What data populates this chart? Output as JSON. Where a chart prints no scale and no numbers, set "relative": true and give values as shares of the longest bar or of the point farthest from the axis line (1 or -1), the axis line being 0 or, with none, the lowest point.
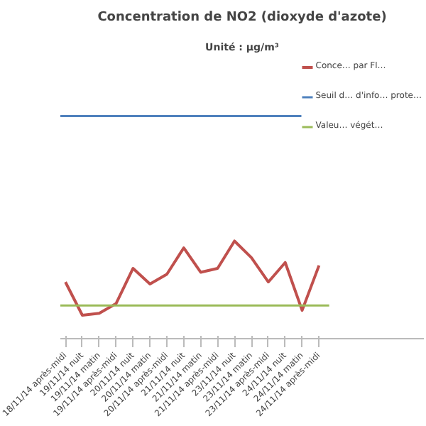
{
  "chart_data": {
    "type": "line",
    "title": "Concentration de NO2 (dioxyde d'azote)",
    "subtitle": "Unité : µg/m³",
    "categories": [
      "18/11/14 après-midi",
      "19/11/14 nuit",
      "19/11/14 matin",
      "19/11/14 après-midi",
      "20/11/14 nuit",
      "20/11/14 matin",
      "20/11/14 après-midi",
      "21/11/14 nuit",
      "21/11/14 matin",
      "21/11/14 après-midi",
      "23/11/14 nuit",
      "23/11/14 matin",
      "23/11/14 après-midi",
      "24/11/14 nuit",
      "24/11/14 matin",
      "24/11/14 après-midi"
    ],
    "series": [
      {
        "name": "Conce… par Fl…",
        "color": "#c0504d",
        "values": [
          0.58,
          0.24,
          0.26,
          0.36,
          0.72,
          0.56,
          0.66,
          0.93,
          0.68,
          0.72,
          1,
          0.83,
          0.58,
          0.78,
          0.29,
          0.75
        ]
      }
    ],
    "relative": true,
    "ref_lines": [
      {
        "axis": "y",
        "value": 2.28,
        "label": "Seuil d… d'info… prote…",
        "color": "#4f81bd"
      },
      {
        "axis": "y",
        "value": 0.34,
        "label": "Valeu… végét…",
        "color": "#9bbb59"
      }
    ],
    "legend": "right",
    "marker": "none",
    "line_style": "solid"
  }
}
